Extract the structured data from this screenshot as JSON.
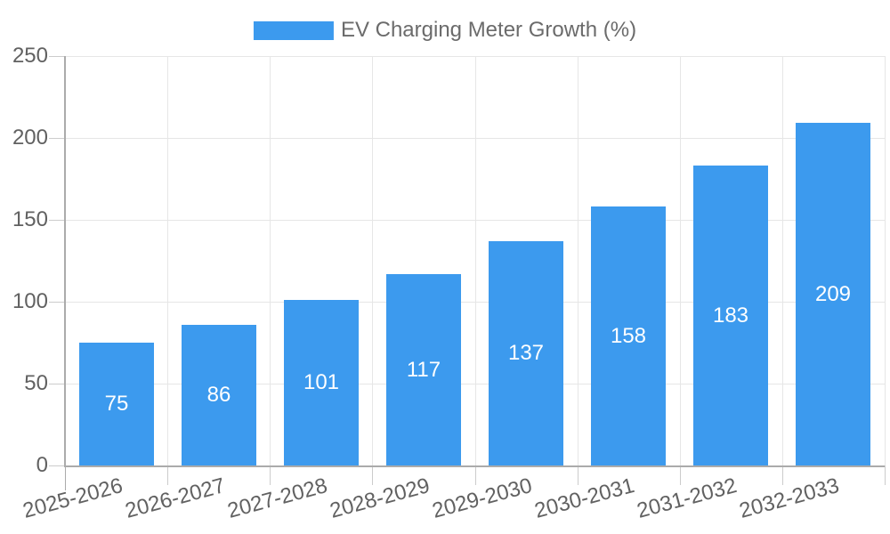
{
  "colors": {
    "bar": "#3c9aee",
    "grid": "#e6e6e6",
    "axis": "#ababab",
    "tick": "#cccccc",
    "tick_label": "#616161",
    "value_label": "#ffffff",
    "legend_text": "#6b6b6b",
    "background": "#ffffff"
  },
  "chart_data": {
    "type": "bar",
    "title": "EV Charging Meter Growth (%)",
    "categories": [
      "2025-2026",
      "2026-2027",
      "2027-2028",
      "2028-2029",
      "2029-2030",
      "2030-2031",
      "2031-2032",
      "2032-2033"
    ],
    "values": [
      75,
      86,
      101,
      117,
      137,
      158,
      183,
      209
    ],
    "xlabel": "",
    "ylabel": "",
    "ylim": [
      0,
      250
    ],
    "yticks": [
      0,
      50,
      100,
      150,
      200,
      250
    ],
    "grid": true,
    "legend_position": "top-center",
    "value_labels": "inside-center"
  }
}
